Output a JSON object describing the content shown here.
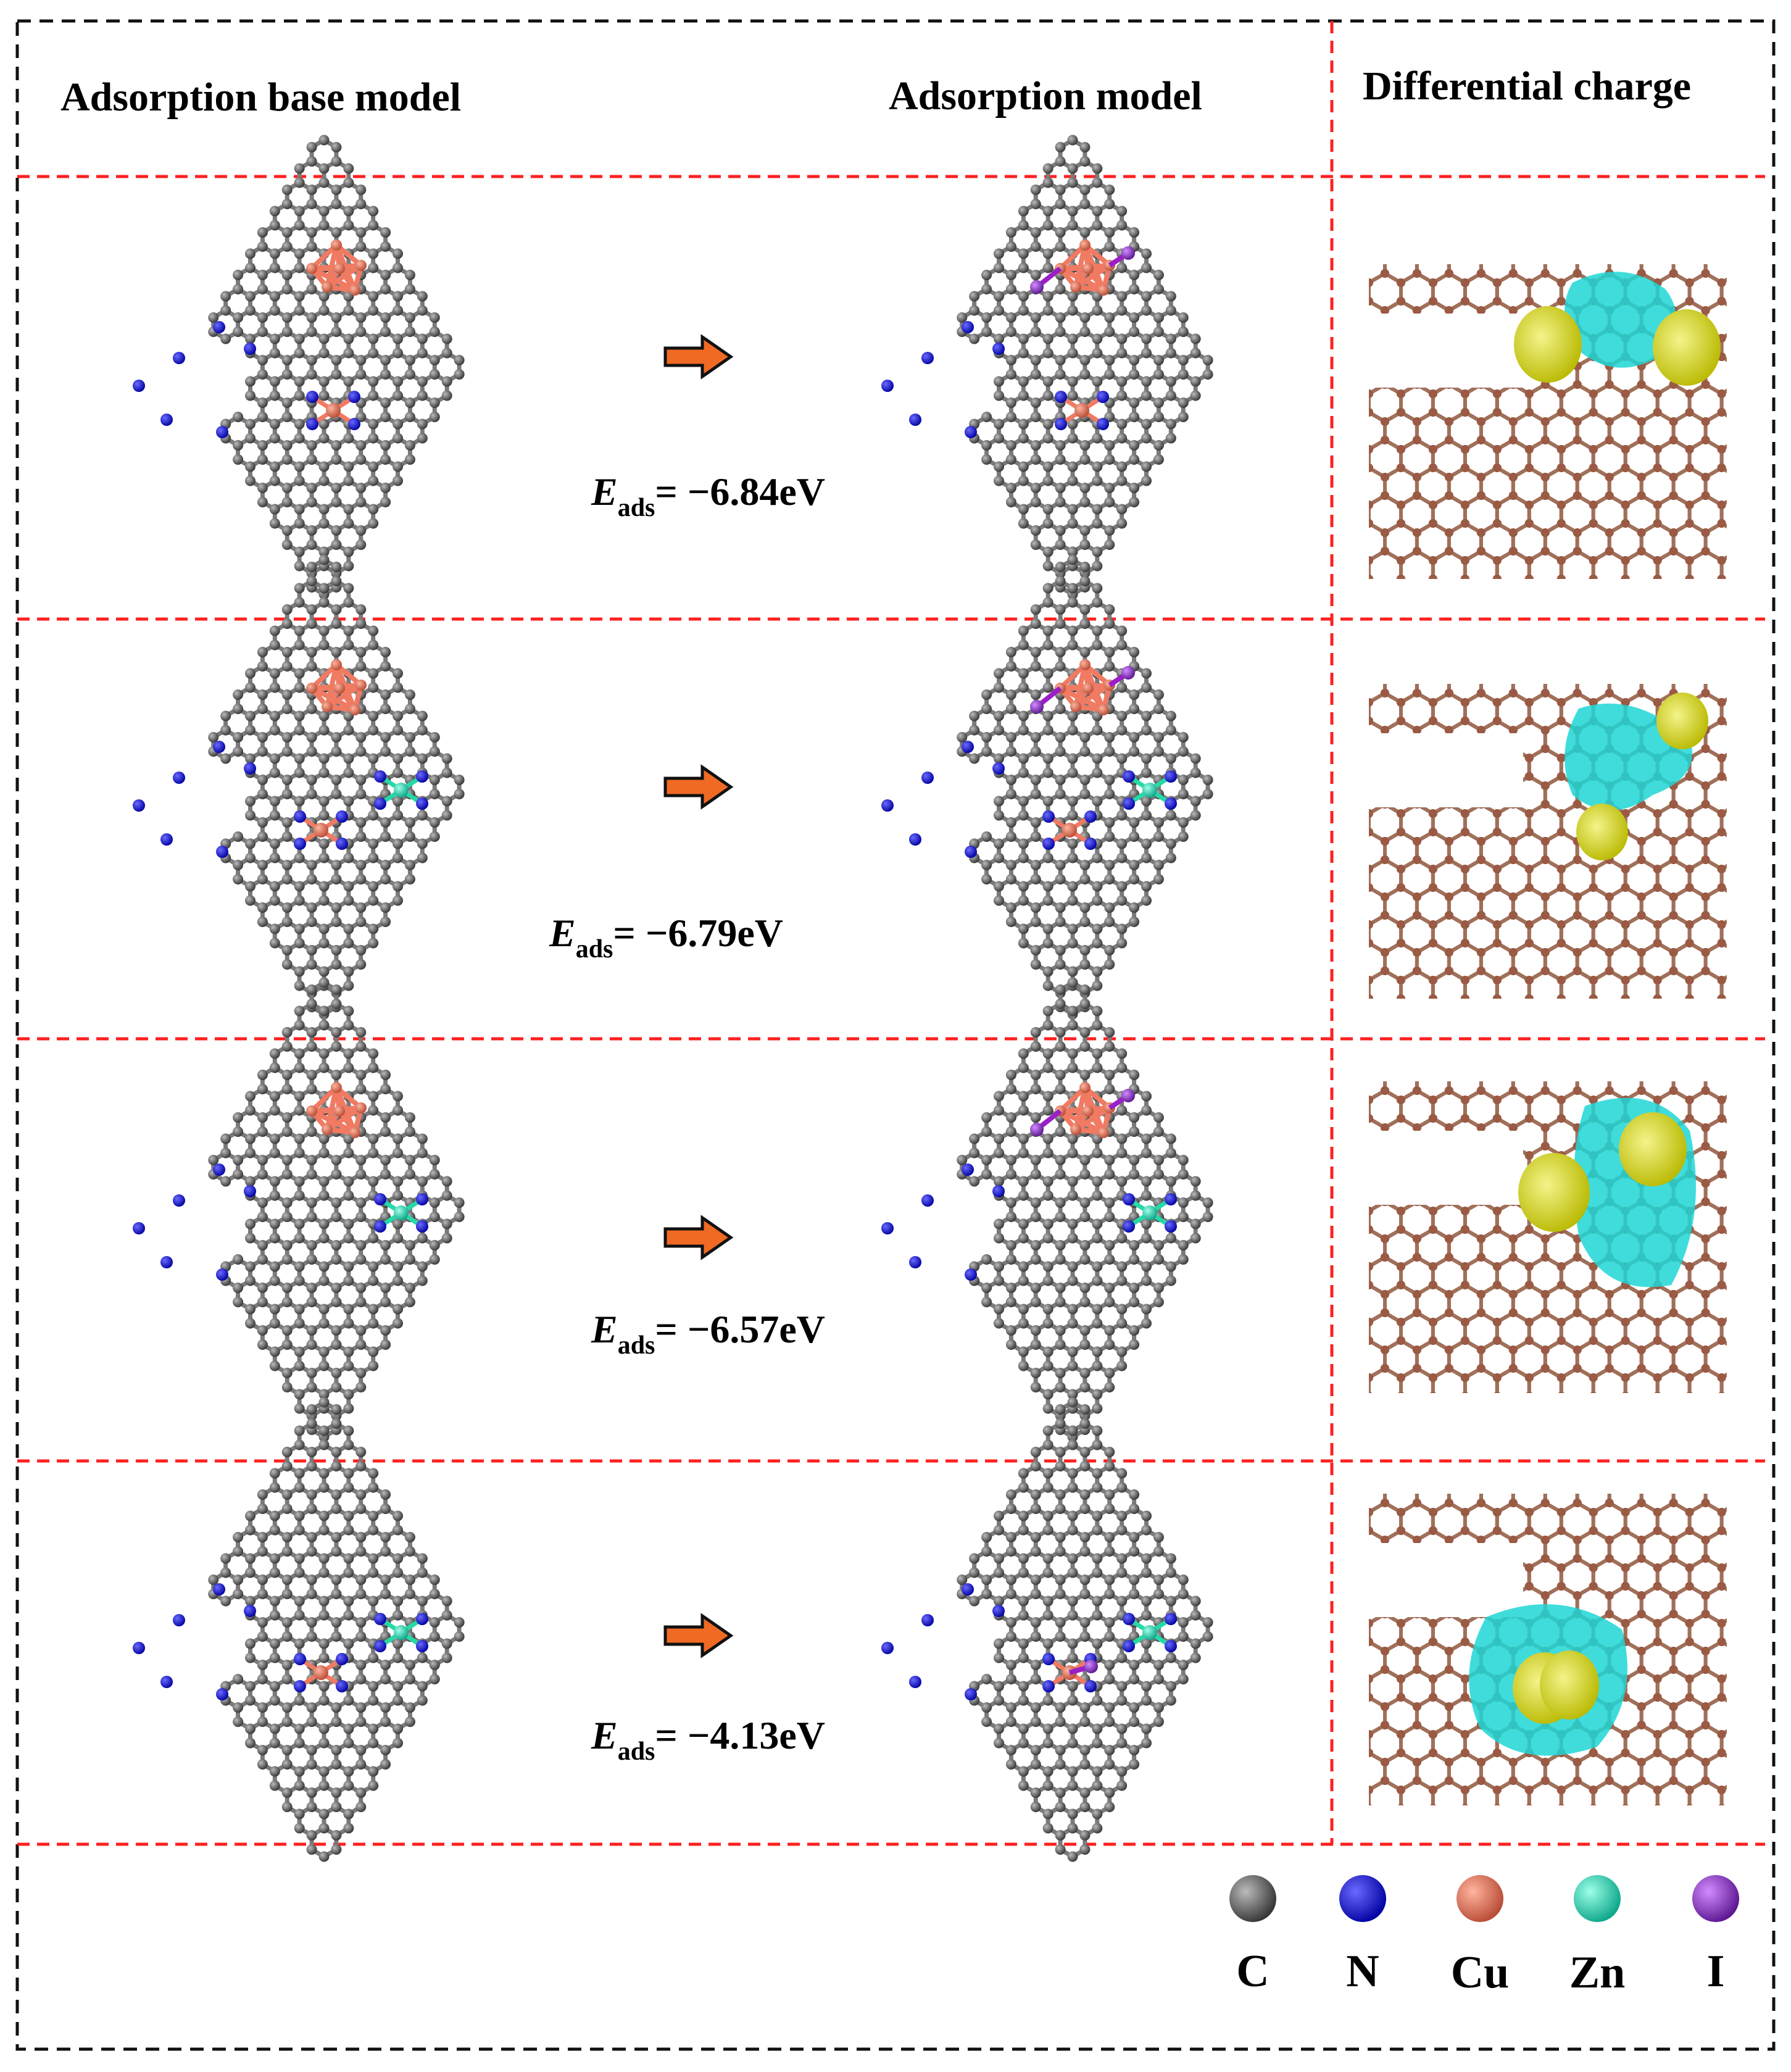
{
  "headers": {
    "base": "Adsorption base model",
    "ads": "Adsorption model",
    "diff": "Differential charge"
  },
  "rows": [
    {
      "label_e": "E",
      "label_sub": "ads",
      "value": "= −6.84eV",
      "site_metals": [
        "Cu"
      ],
      "cluster": true
    },
    {
      "label_e": "E",
      "label_sub": "ads",
      "value": "=  −6.79eV",
      "site_metals": [
        "Cu",
        "Zn"
      ],
      "cluster": true
    },
    {
      "label_e": "E",
      "label_sub": "ads",
      "value": "= −6.57eV",
      "site_metals": [
        "Zn"
      ],
      "cluster": true
    },
    {
      "label_e": "E",
      "label_sub": "ads",
      "value": "= −4.13eV",
      "site_metals": [
        "Cu",
        "Zn"
      ],
      "cluster": false
    }
  ],
  "legend": [
    {
      "label": "C",
      "color": "#555555"
    },
    {
      "label": "N",
      "color": "#1a1aff"
    },
    {
      "label": "Cu",
      "color": "#e8735a"
    },
    {
      "label": "Zn",
      "color": "#20e6b8"
    },
    {
      "label": "I",
      "color": "#8a2be2"
    }
  ],
  "colors": {
    "carbon": "#8c8c8c",
    "nitrogen": "#1a1aee",
    "copper": "#f07a62",
    "zinc": "#25d9a8",
    "iodine": "#9b1fc8",
    "brown_carbon": "#a0705a",
    "cyan_iso": "#1fd6d6",
    "yellow_iso": "#d8d820",
    "arrow": "#f06a24",
    "red_divider": "#ff2020"
  }
}
